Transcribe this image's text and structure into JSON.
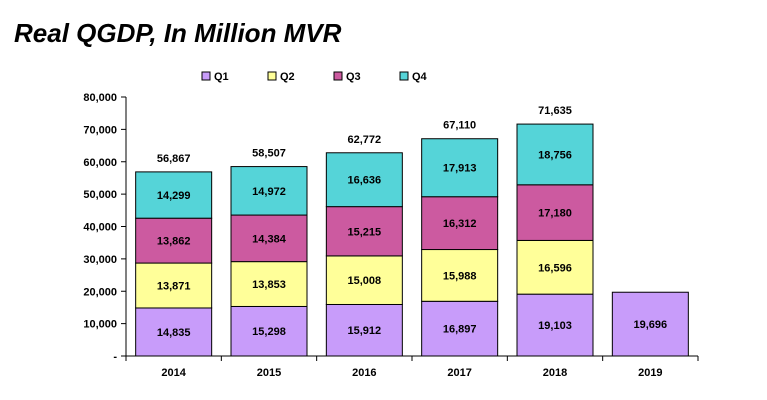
{
  "title": "Real QGDP, In Million MVR",
  "colors": {
    "q1": "#c89cfa",
    "q2": "#ffff99",
    "q3": "#cc5aa0",
    "q4": "#55d4d8",
    "stroke": "#000000"
  },
  "chart_data": {
    "type": "bar",
    "stacked": true,
    "title": "Real QGDP, In Million MVR",
    "xlabel": "",
    "ylabel": "",
    "categories": [
      "2014",
      "2015",
      "2016",
      "2017",
      "2018",
      "2019"
    ],
    "series": [
      {
        "name": "Q1",
        "color_key": "q1",
        "values": [
          14835,
          15298,
          15912,
          16897,
          19103,
          19696
        ]
      },
      {
        "name": "Q2",
        "color_key": "q2",
        "values": [
          13871,
          13853,
          15008,
          15988,
          16596,
          null
        ]
      },
      {
        "name": "Q3",
        "color_key": "q3",
        "values": [
          13862,
          14384,
          15215,
          16312,
          17180,
          null
        ]
      },
      {
        "name": "Q4",
        "color_key": "q4",
        "values": [
          14299,
          14972,
          16636,
          17913,
          18756,
          null
        ]
      }
    ],
    "totals": [
      56867,
      58507,
      62772,
      67110,
      71635,
      null
    ],
    "ylim": [
      0,
      80000
    ],
    "yticks": [
      0,
      10000,
      20000,
      30000,
      40000,
      50000,
      60000,
      70000,
      80000
    ],
    "ytick_labels": [
      "-",
      "10,000",
      "20,000",
      "30,000",
      "40,000",
      "50,000",
      "60,000",
      "70,000",
      "80,000"
    ],
    "legend_position": "top",
    "grid": false
  }
}
